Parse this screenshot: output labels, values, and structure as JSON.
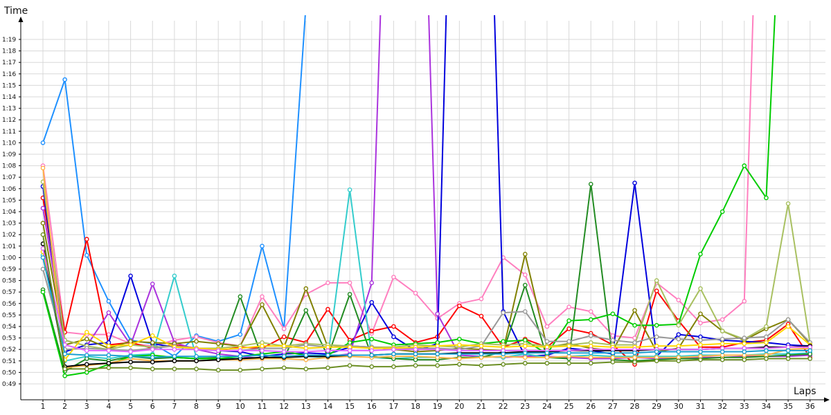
{
  "chart_data": {
    "type": "line",
    "xlabel": "Laps",
    "ylabel": "Time",
    "xlim": [
      1,
      36
    ],
    "ylim_seconds": [
      48,
      80
    ],
    "grid": true,
    "legend": "none",
    "x": [
      1,
      2,
      3,
      4,
      5,
      6,
      7,
      8,
      9,
      10,
      11,
      12,
      13,
      14,
      15,
      16,
      17,
      18,
      19,
      20,
      21,
      22,
      23,
      24,
      25,
      26,
      27,
      28,
      29,
      30,
      31,
      32,
      33,
      34,
      35,
      36
    ],
    "y_tick_labels": [
      "0:49",
      "0:50",
      "0:51",
      "0:52",
      "0:53",
      "0:54",
      "0:55",
      "0:56",
      "0:57",
      "0:58",
      "0:59",
      "1:00",
      "1:01",
      "1:02",
      "1:03",
      "1:04",
      "1:05",
      "1:06",
      "1:07",
      "1:08",
      "1:09",
      "1:10",
      "1:11",
      "1:12",
      "1:13",
      "1:14",
      "1:15",
      "1:16",
      "1:17",
      "1:18",
      "1:19"
    ],
    "x_tick_labels": [
      "1",
      "2",
      "3",
      "4",
      "5",
      "6",
      "7",
      "8",
      "9",
      "10",
      "11",
      "12",
      "13",
      "14",
      "15",
      "16",
      "17",
      "18",
      "19",
      "20",
      "21",
      "22",
      "23",
      "24",
      "25",
      "26",
      "27",
      "28",
      "29",
      "30",
      "31",
      "32",
      "33",
      "34",
      "35",
      "36"
    ],
    "series": [
      {
        "color": "#1e90ff",
        "values": [
          70,
          75.5,
          60.2,
          56.2,
          52.8,
          52.5,
          51.4,
          53.2,
          52.7,
          53.3,
          61,
          53.8,
          82,
          null,
          null,
          null,
          null,
          null,
          null,
          null,
          null,
          null,
          null,
          null,
          null,
          null,
          null,
          null,
          null,
          null,
          null,
          null,
          null,
          null,
          null,
          null
        ]
      },
      {
        "color": "#ff7fbf",
        "values": [
          68,
          53.5,
          53.3,
          53.3,
          52.5,
          52.3,
          52.8,
          53.1,
          52.6,
          52.3,
          56.6,
          53.8,
          56.8,
          57.8,
          57.8,
          53.4,
          58.3,
          56.9,
          54.7,
          56,
          56.4,
          60,
          58.5,
          54,
          55.7,
          55.3,
          53.2,
          53,
          57.8,
          56.3,
          54.3,
          54.6,
          56.2,
          null,
          null,
          null
        ]
      },
      {
        "color": "#ff0000",
        "values": [
          65.2,
          53.5,
          61.6,
          52.4,
          52.6,
          52.1,
          52.4,
          52.1,
          51.9,
          52.2,
          52.1,
          53.1,
          52.6,
          55.5,
          52.8,
          53.6,
          54,
          52.6,
          53.1,
          55.8,
          54.9,
          52.2,
          52.9,
          52.2,
          53.8,
          53.4,
          52.4,
          50.7,
          57.1,
          54.5,
          52.2,
          52.2,
          52.6,
          52.8,
          54.2,
          51.3
        ]
      },
      {
        "color": "#0000dd",
        "values": [
          66.2,
          51.8,
          52.4,
          52.6,
          58.4,
          52.5,
          52.2,
          52.1,
          51.9,
          51.8,
          51.4,
          51.6,
          51.7,
          51.6,
          52.2,
          56.1,
          53.1,
          51.9,
          52.5,
          null,
          null,
          55.3,
          51.4,
          51.5,
          52.1,
          51.9,
          51.6,
          66.5,
          51.4,
          53.3,
          53.1,
          52.8,
          52.7,
          52.6,
          52.4,
          52.3
        ]
      },
      {
        "color": "#aa33dd",
        "values": [
          64.3,
          52.8,
          52.3,
          55.2,
          52.4,
          57.7,
          52.6,
          52,
          51.6,
          51.4,
          51.2,
          51.3,
          51.5,
          51.4,
          51.6,
          57.8,
          null,
          null,
          55.1,
          51.5,
          51.4,
          51.3,
          51.4,
          51.4,
          51.3,
          51.2,
          51.2,
          51.3,
          51.2,
          51.3,
          51.3,
          51.3,
          51.4,
          51.4,
          51.4,
          51.5
        ]
      },
      {
        "color": "#33cccc",
        "values": [
          60.2,
          51,
          51.4,
          51.2,
          51.5,
          51.6,
          58.4,
          51.3,
          51.2,
          51.2,
          51.3,
          51.3,
          51.4,
          51.3,
          65.9,
          51.3,
          51.2,
          51.3,
          51.3,
          51.2,
          51.4,
          51.3,
          51.6,
          51.3,
          51.4,
          51.5,
          51.4,
          51.4,
          51.4,
          51.4,
          51.5,
          51.5,
          51.5,
          51.6,
          51.6,
          51.7
        ]
      },
      {
        "color": "#228b22",
        "values": [
          57.2,
          50.1,
          51.2,
          51,
          51.4,
          51.2,
          51.3,
          51.2,
          51.3,
          56.6,
          51.3,
          51.2,
          55.4,
          51.4,
          56.8,
          51.4,
          51.2,
          51.1,
          51.1,
          51.3,
          51.3,
          51.8,
          57.6,
          51.3,
          51.2,
          66.4,
          51.1,
          51,
          51.1,
          51.2,
          51.2,
          51.3,
          51.3,
          51.4,
          51.5,
          51.6
        ]
      },
      {
        "color": "#808000",
        "values": [
          63,
          52.4,
          52.9,
          52.1,
          52.7,
          52.6,
          52.5,
          52.7,
          52.5,
          52.3,
          55.9,
          52.2,
          57.3,
          52.2,
          52.3,
          52.2,
          52,
          51.8,
          51.9,
          52.1,
          52,
          51.9,
          60.3,
          52.2,
          52.5,
          52.1,
          51.9,
          55.4,
          51.8,
          52.1,
          55.1,
          53.6,
          52.8,
          53.8,
          54.6,
          52.5
        ]
      },
      {
        "color": "#00cc00",
        "values": [
          57,
          49.7,
          50,
          50.7,
          51.4,
          51.5,
          51.3,
          51.2,
          51.2,
          51.4,
          51.6,
          51.8,
          51.5,
          51.5,
          52.6,
          52.9,
          52.4,
          52.5,
          52.6,
          52.9,
          52.5,
          52.7,
          52.8,
          51.6,
          54.5,
          54.6,
          55.1,
          54.1,
          54.1,
          54.2,
          60.3,
          64,
          68,
          65.2,
          null,
          null
        ]
      },
      {
        "color": "#a8c060",
        "values": [
          66.6,
          52.8,
          52.3,
          52,
          52.4,
          52.2,
          52.3,
          52.1,
          52.1,
          52.3,
          52.6,
          52.3,
          52.5,
          52.4,
          52.3,
          52.2,
          52.2,
          52.4,
          52.3,
          52.2,
          52.5,
          52.4,
          52.5,
          52.3,
          52.4,
          52.6,
          52.4,
          52.4,
          58,
          54.1,
          57.3,
          53.6,
          52.9,
          54,
          64.7,
          52.5
        ]
      },
      {
        "color": "#999999",
        "values": [
          59,
          52,
          52.1,
          52,
          51.9,
          52.1,
          52.3,
          52,
          51.9,
          51.9,
          52.1,
          52.1,
          52.4,
          52.2,
          52.3,
          52.2,
          52,
          52.1,
          52.1,
          52,
          52.3,
          55.2,
          55.3,
          52.7,
          52.7,
          53.2,
          52.8,
          52.6,
          53.1,
          52.9,
          52.8,
          52.9,
          53,
          53.1,
          54.6,
          52.6
        ]
      },
      {
        "color": "#ffb347",
        "values": [
          67.8,
          50.4,
          50.6,
          50.8,
          51.2,
          51,
          51,
          51,
          51.1,
          51.1,
          51.2,
          51.2,
          51.1,
          51.3,
          51.4,
          51.3,
          51.4,
          51.4,
          51.3,
          51.2,
          51.3,
          51.4,
          51.3,
          51.3,
          51.4,
          51.3,
          51.3,
          51.3,
          51.3,
          51.3,
          51.4,
          51.5,
          51.5,
          51.5,
          52,
          52.1
        ]
      },
      {
        "color": "#ffd700",
        "values": [
          60.5,
          51.1,
          53.5,
          52.3,
          52.4,
          53.2,
          52.2,
          52.1,
          52,
          52.1,
          52.3,
          52.3,
          52.1,
          52.2,
          52.2,
          52.1,
          52.1,
          52.2,
          52.3,
          52.4,
          52.3,
          52.2,
          52.3,
          52.2,
          52.3,
          52.3,
          52.2,
          52.2,
          52.3,
          52.3,
          52.4,
          52.5,
          52.5,
          52.6,
          54,
          52.4
        ]
      },
      {
        "color": "#000000",
        "values": [
          61.2,
          50.5,
          50.7,
          50.8,
          50.9,
          50.9,
          51,
          51,
          51.1,
          51.2,
          51.3,
          51.3,
          51.4,
          51.4,
          51.5,
          51.5,
          51.6,
          51.6,
          51.6,
          51.7,
          51.7,
          51.7,
          51.8,
          51.8,
          51.9,
          51.9,
          51.9,
          51.9,
          52,
          52,
          52,
          52.1,
          52.1,
          52.2,
          52.2,
          52.3
        ]
      },
      {
        "color": "#e066ff",
        "values": [
          60.8,
          52.4,
          51.9,
          51.9,
          51.8,
          52,
          52,
          52,
          51.9,
          51.9,
          51.9,
          51.8,
          51.8,
          51.9,
          51.9,
          51.9,
          52,
          52,
          52,
          51.9,
          51.9,
          51.9,
          51.9,
          51.9,
          51.9,
          52,
          52,
          52,
          52,
          52,
          52,
          52.1,
          52.1,
          52.1,
          52.2,
          52.2
        ]
      },
      {
        "color": "#1a9fd0",
        "values": [
          60,
          51.6,
          51.5,
          51.5,
          51.4,
          51.3,
          51.4,
          51.4,
          51.4,
          51.4,
          51.5,
          51.4,
          51.5,
          51.5,
          51.5,
          51.5,
          51.6,
          51.6,
          51.6,
          51.6,
          51.6,
          51.6,
          51.7,
          51.7,
          51.7,
          51.7,
          51.7,
          51.7,
          51.8,
          51.8,
          51.8,
          51.8,
          51.8,
          51.9,
          51.9,
          51.9
        ]
      },
      {
        "color": "#6b8e23",
        "values": [
          62,
          50.3,
          50.3,
          50.4,
          50.4,
          50.3,
          50.3,
          50.3,
          50.2,
          50.2,
          50.3,
          50.4,
          50.3,
          50.4,
          50.6,
          50.5,
          50.5,
          50.6,
          50.6,
          50.7,
          50.6,
          50.7,
          50.8,
          50.8,
          50.8,
          50.8,
          50.9,
          50.9,
          51,
          51,
          51.1,
          51.1,
          51.1,
          51.2,
          51.2,
          51.2
        ]
      }
    ]
  }
}
